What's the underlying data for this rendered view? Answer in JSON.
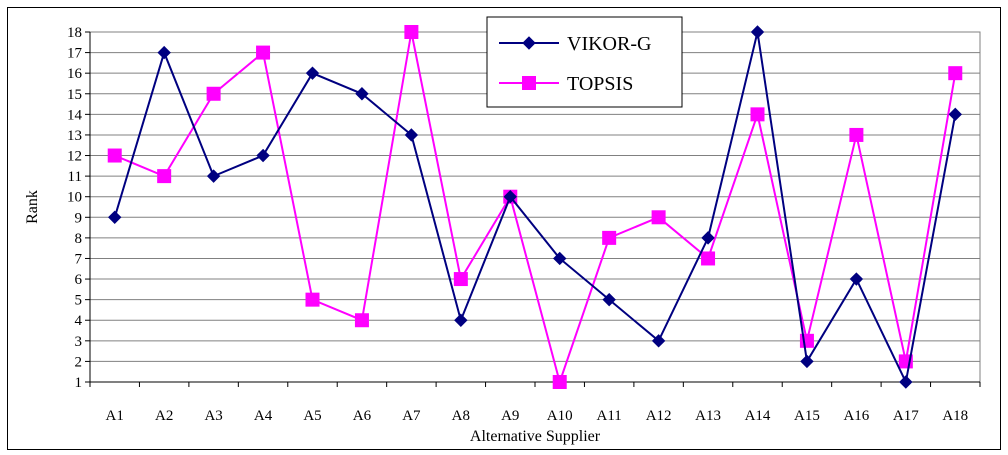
{
  "chart_data": {
    "type": "line",
    "title": "",
    "xlabel": "Alternative Supplier",
    "ylabel": "Rank",
    "categories": [
      "A1",
      "A2",
      "A3",
      "A4",
      "A5",
      "A6",
      "A7",
      "A8",
      "A9",
      "A10",
      "A11",
      "A12",
      "A13",
      "A14",
      "A15",
      "A16",
      "A17",
      "A18"
    ],
    "ylim": [
      1,
      18
    ],
    "yticks": [
      "1",
      "2",
      "3",
      "4",
      "5",
      "6",
      "7",
      "8",
      "9",
      "10",
      "11",
      "12",
      "13",
      "14",
      "15",
      "16",
      "17",
      "18"
    ],
    "grid": true,
    "legend_position": "top-center",
    "series": [
      {
        "name": "VIKOR-G",
        "color": "#000080",
        "marker": "diamond",
        "values": [
          9,
          17,
          11,
          12,
          16,
          15,
          13,
          4,
          10,
          7,
          5,
          3,
          8,
          18,
          2,
          6,
          1,
          14
        ]
      },
      {
        "name": "TOPSIS",
        "color": "#FF00FF",
        "marker": "square",
        "values": [
          12,
          11,
          15,
          17,
          5,
          4,
          18,
          6,
          10,
          1,
          8,
          9,
          7,
          14,
          3,
          13,
          2,
          16
        ]
      }
    ]
  }
}
